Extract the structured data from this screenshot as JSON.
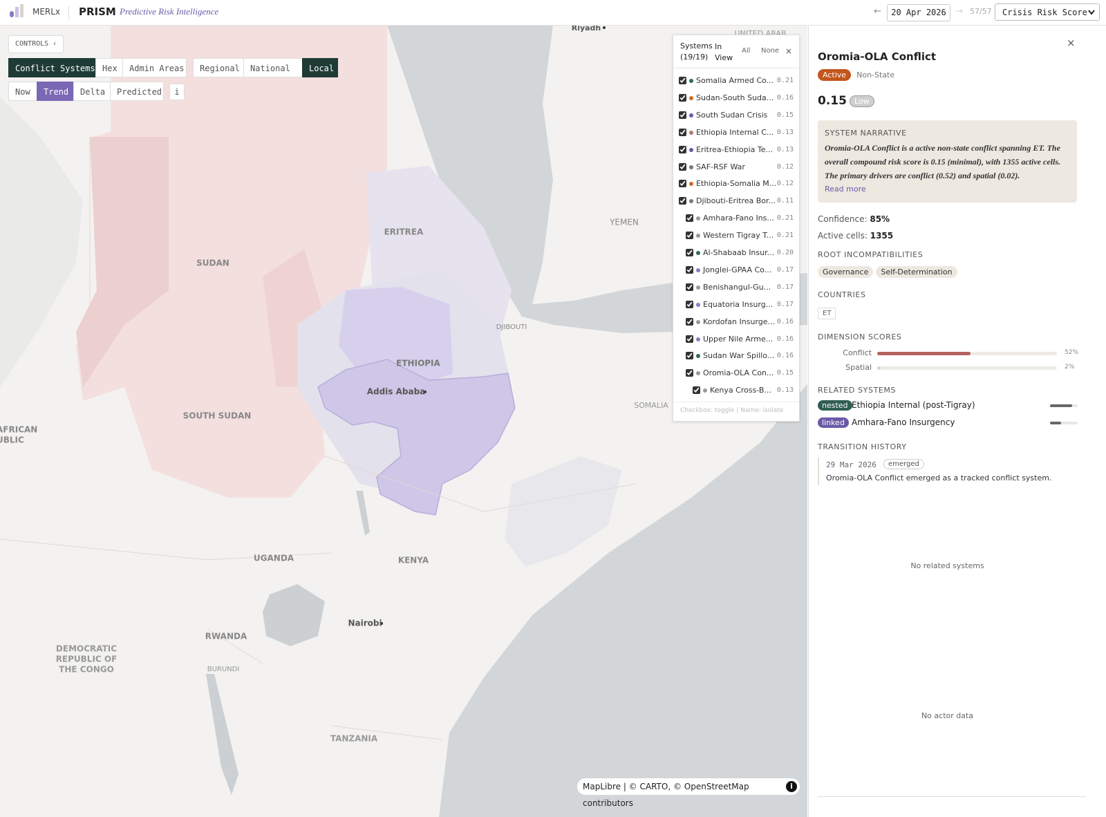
{
  "header": {
    "brand": "MERLx",
    "product": "PRISM",
    "tagline": "Predictive Risk Intelligence",
    "prev": "←",
    "date": "20 Apr 2026",
    "next": "→",
    "counter": "57/57",
    "metric": "Crisis Risk Score"
  },
  "controls": {
    "toggle": "CONTROLS ‹",
    "layers": [
      "Conflict Systems",
      "Hex",
      "Admin Areas"
    ],
    "active_layer": 0,
    "scales": [
      "Regional",
      "National",
      "Local"
    ],
    "active_scale": 2,
    "modes": [
      "Now",
      "Trend",
      "Delta",
      "Predicted"
    ],
    "active_mode": 1,
    "info": "i"
  },
  "map": {
    "labels": [
      "Riyadh",
      "UNITED ARAB",
      "YEMEN",
      "ERITREA",
      "SUDAN",
      "DJIBOUTI",
      "ETHIOPIA",
      "Addis Ababa",
      "SOMALIA",
      "SOUTH SUDAN",
      "AFRICAN",
      "UBLIC",
      "UGANDA",
      "KENYA",
      "Nairobi",
      "RWANDA",
      "DEMOCRATIC",
      "REPUBLIC OF",
      "THE CONGO",
      "BURUNDI",
      "TANZANIA"
    ],
    "attribution": "MapLibre | © CARTO, © OpenStreetMap contributors",
    "info": "i"
  },
  "systems": {
    "title": "Systems",
    "count": "(19/19)",
    "in_view": "In View",
    "all": "All",
    "none": "None",
    "close": "×",
    "items": [
      {
        "name": "Somalia Armed Co...",
        "score": "0.21",
        "color": "#2f6b55",
        "level": 0
      },
      {
        "name": "Sudan-South Suda...",
        "score": "0.16",
        "color": "#d0692a",
        "level": 0
      },
      {
        "name": "South Sudan Crisis",
        "score": "0.15",
        "color": "#6a5aa8",
        "level": 0
      },
      {
        "name": "Ethiopia Internal C...",
        "score": "0.13",
        "color": "#b27a6a",
        "level": 0
      },
      {
        "name": "Eritrea-Ethiopia Te...",
        "score": "0.13",
        "color": "#6a5aa8",
        "level": 0
      },
      {
        "name": "SAF-RSF War",
        "score": "0.12",
        "color": "#777777",
        "level": 0
      },
      {
        "name": "Ethiopia-Somalia M...",
        "score": "0.12",
        "color": "#d0692a",
        "level": 0
      },
      {
        "name": "Djibouti-Eritrea Bor...",
        "score": "0.11",
        "color": "#777777",
        "level": 0
      },
      {
        "name": "Amhara-Fano Ins...",
        "score": "0.21",
        "color": "#999999",
        "level": 1
      },
      {
        "name": "Western Tigray T...",
        "score": "0.21",
        "color": "#999999",
        "level": 1
      },
      {
        "name": "Al-Shabaab Insur...",
        "score": "0.20",
        "color": "#2f6b55",
        "level": 1
      },
      {
        "name": "Jonglei-GPAA Co...",
        "score": "0.17",
        "color": "#8a7cc4",
        "level": 1
      },
      {
        "name": "Benishangul-Gu...",
        "score": "0.17",
        "color": "#999999",
        "level": 1
      },
      {
        "name": "Equatoria Insurg...",
        "score": "0.17",
        "color": "#8a7cc4",
        "level": 1
      },
      {
        "name": "Kordofan Insurge...",
        "score": "0.16",
        "color": "#999999",
        "level": 1
      },
      {
        "name": "Upper Nile Arme...",
        "score": "0.16",
        "color": "#8a7cc4",
        "level": 1
      },
      {
        "name": "Sudan War Spillo...",
        "score": "0.16",
        "color": "#2f6b55",
        "level": 1
      },
      {
        "name": "Oromia-OLA Con...",
        "score": "0.15",
        "color": "#999999",
        "level": 1
      },
      {
        "name": "Kenya Cross-B...",
        "score": "0.13",
        "color": "#999999",
        "level": 2
      }
    ],
    "footer": "Checkbox: toggle | Name: isolate"
  },
  "detail": {
    "close": "×",
    "title": "Oromia-OLA Conflict",
    "status": "Active",
    "kind": "Non-State",
    "score": "0.15",
    "level": "Low",
    "narrative_heading": "SYSTEM NARRATIVE",
    "narrative": "Oromia-OLA Conflict is a active non-state conflict spanning ET. The overall compound risk score is 0.15 (minimal), with 1355 active cells. The primary drivers are conflict (0.52) and spatial (0.02).",
    "read_more": "Read more",
    "confidence_label": "Confidence:",
    "confidence": "85%",
    "cells_label": "Active cells:",
    "cells": "1355",
    "roots_heading": "ROOT INCOMPATIBILITIES",
    "roots": [
      "Governance",
      "Self-Determination"
    ],
    "countries_heading": "COUNTRIES",
    "countries": [
      "ET"
    ],
    "dimensions_heading": "DIMENSION SCORES",
    "dimensions": {
      "names": [
        "Conflict",
        "Spatial"
      ],
      "values": [
        52,
        2
      ],
      "value_labels": [
        "52%",
        "2%"
      ],
      "colors": [
        "#b5615e",
        "#d8d4cc"
      ]
    },
    "related_heading": "RELATED SYSTEMS",
    "related": [
      {
        "relation": "nested",
        "name": "Ethiopia Internal (post-Tigray)",
        "strength": 0.8,
        "color": "#2f5e52"
      },
      {
        "relation": "linked",
        "name": "Amhara-Fano Insurgency",
        "strength": 0.4,
        "color": "#6a5aa8"
      }
    ],
    "history_heading": "TRANSITION HISTORY",
    "history": [
      {
        "date": "29 Mar 2026",
        "event": "emerged",
        "text": "Oromia-OLA Conflict emerged as a tracked conflict system."
      }
    ],
    "no_related": "No related systems",
    "no_actors": "No actor data"
  }
}
